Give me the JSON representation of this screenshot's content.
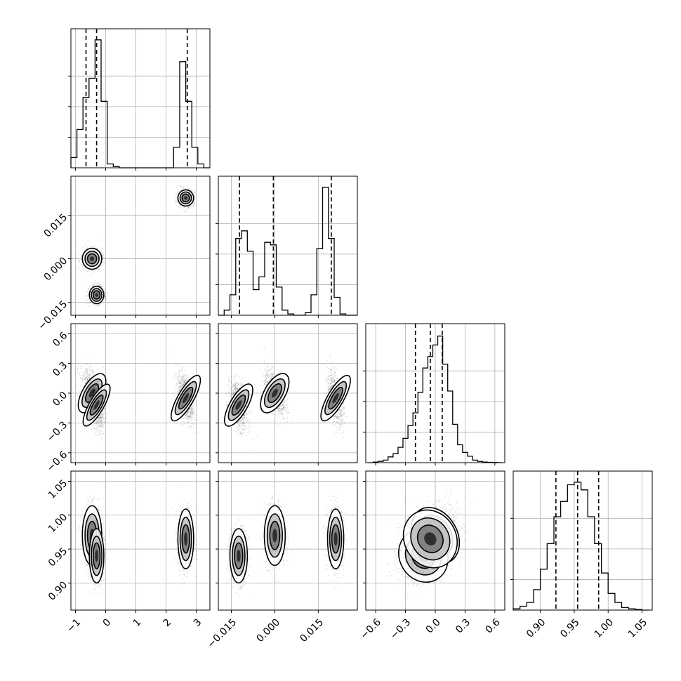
{
  "chart_data": {
    "type": "corner",
    "n_params": 4,
    "grid": true,
    "params": [
      {
        "range": [
          -1.15,
          3.45
        ],
        "ticks": [
          -1,
          0,
          1,
          2,
          3
        ],
        "tick_labels": [
          "−1",
          "0",
          "1",
          "2",
          "3"
        ]
      },
      {
        "range": [
          -0.0195,
          0.0285
        ],
        "ticks": [
          -0.015,
          0.0,
          0.015
        ],
        "tick_labels": [
          "−0.015",
          "0.000",
          "0.015"
        ]
      },
      {
        "range": [
          -0.7,
          0.7
        ],
        "ticks": [
          -0.6,
          -0.3,
          0.0,
          0.3,
          0.6
        ],
        "tick_labels": [
          "−0.6",
          "−0.3",
          "0.0",
          "0.3",
          "0.6"
        ]
      },
      {
        "range": [
          0.86,
          1.065
        ],
        "ticks": [
          0.9,
          0.95,
          1.0,
          1.05
        ],
        "tick_labels": [
          "0.90",
          "0.95",
          "1.00",
          "1.05"
        ]
      }
    ],
    "histograms": [
      {
        "bin_centers": [
          -1.05,
          -0.85,
          -0.65,
          -0.45,
          -0.25,
          -0.05,
          0.15,
          0.35,
          0.55,
          0.75,
          0.95,
          1.15,
          1.35,
          1.55,
          1.75,
          1.95,
          2.15,
          2.35,
          2.55,
          2.75,
          2.95,
          3.15,
          3.35
        ],
        "counts": [
          0.08,
          0.3,
          0.55,
          0.7,
          1.0,
          0.52,
          0.03,
          0.01,
          0,
          0,
          0,
          0,
          0,
          0,
          0,
          0,
          0,
          0.16,
          0.83,
          0.52,
          0.16,
          0.03,
          0
        ],
        "quantiles": [
          -0.65,
          -0.3,
          2.7
        ]
      },
      {
        "bin_centers": [
          -0.0185,
          -0.0165,
          -0.0145,
          -0.0125,
          -0.0105,
          -0.0085,
          -0.0065,
          -0.0045,
          -0.0025,
          -0.0005,
          0.0015,
          0.0035,
          0.0055,
          0.0075,
          0.0095,
          0.0115,
          0.0135,
          0.0155,
          0.0175,
          0.0195,
          0.0215,
          0.0235,
          0.0255,
          0.0275
        ],
        "counts": [
          0,
          0.04,
          0.16,
          0.6,
          0.66,
          0.5,
          0.2,
          0.3,
          0.57,
          0.55,
          0.22,
          0.04,
          0.01,
          0,
          0,
          0.02,
          0.16,
          0.52,
          1.0,
          0.6,
          0.14,
          0.01,
          0,
          0
        ],
        "quantiles": [
          -0.0122,
          -0.0005,
          0.0195
        ]
      },
      {
        "bin_centers": [
          -0.65,
          -0.6,
          -0.55,
          -0.5,
          -0.45,
          -0.4,
          -0.35,
          -0.3,
          -0.25,
          -0.2,
          -0.15,
          -0.1,
          -0.05,
          0.0,
          0.05,
          0.1,
          0.15,
          0.2,
          0.25,
          0.3,
          0.35,
          0.4,
          0.45,
          0.5,
          0.55,
          0.6,
          0.65
        ],
        "counts": [
          0,
          0.005,
          0.01,
          0.02,
          0.045,
          0.07,
          0.12,
          0.19,
          0.29,
          0.39,
          0.55,
          0.74,
          0.83,
          0.92,
          0.99,
          0.77,
          0.56,
          0.3,
          0.14,
          0.08,
          0.05,
          0.02,
          0.01,
          0.005,
          0.003,
          0.002,
          0
        ],
        "quantiles": [
          -0.2,
          -0.05,
          0.07
        ]
      },
      {
        "bin_centers": [
          0.865,
          0.875,
          0.885,
          0.895,
          0.905,
          0.915,
          0.925,
          0.935,
          0.945,
          0.955,
          0.965,
          0.975,
          0.985,
          0.995,
          1.005,
          1.015,
          1.025,
          1.035,
          1.045,
          1.055
        ],
        "counts": [
          0.01,
          0.03,
          0.06,
          0.16,
          0.32,
          0.52,
          0.73,
          0.85,
          0.98,
          1.0,
          0.94,
          0.73,
          0.52,
          0.29,
          0.13,
          0.06,
          0.02,
          0.01,
          0.005,
          0
        ],
        "quantiles": [
          0.923,
          0.955,
          0.986
        ]
      }
    ],
    "clusters": [
      {
        "mean": [
          -0.45,
          0.0,
          0.0,
          0.97
        ],
        "sd": [
          0.16,
          0.0018,
          0.11,
          0.022
        ],
        "rho_23": -0.5
      },
      {
        "mean": [
          -0.3,
          -0.0125,
          -0.12,
          0.94
        ],
        "sd": [
          0.12,
          0.0015,
          0.12,
          0.02
        ],
        "rho_23": -0.4
      },
      {
        "mean": [
          2.65,
          0.021,
          -0.05,
          0.965
        ],
        "sd": [
          0.13,
          0.0014,
          0.13,
          0.022
        ],
        "rho_23": -0.5
      }
    ]
  }
}
